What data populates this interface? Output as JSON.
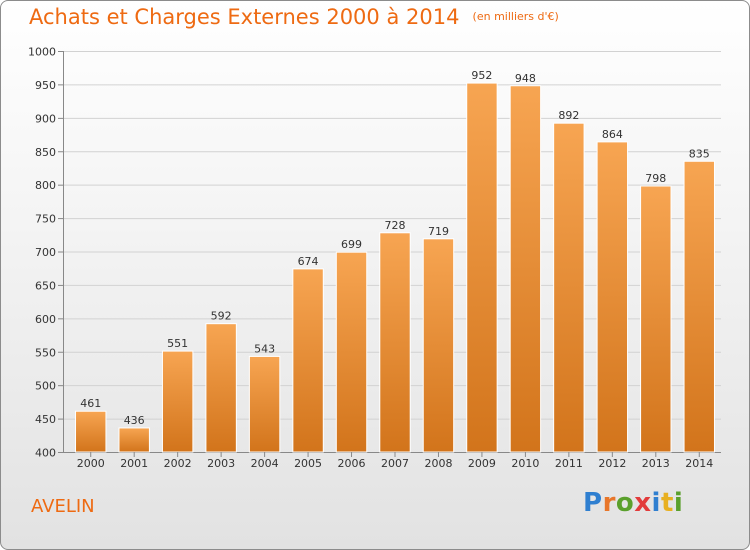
{
  "header": {
    "title": "Achats et Charges Externes 2000 à 2014",
    "unit": "(en milliers d'€)"
  },
  "footer": {
    "commune": "AVELIN",
    "logo_text": "Proxiti"
  },
  "colors": {
    "title": "#ee6a12",
    "bar_top": "#f7a552",
    "bar_bottom": "#d2741b",
    "logo": [
      "#2f7fd0",
      "#e8762a",
      "#5aa02c",
      "#e23b3b",
      "#2f7fd0",
      "#e8b021",
      "#5aa02c"
    ]
  },
  "chart_data": {
    "type": "bar",
    "categories": [
      "2000",
      "2001",
      "2002",
      "2003",
      "2004",
      "2005",
      "2006",
      "2007",
      "2008",
      "2009",
      "2010",
      "2011",
      "2012",
      "2013",
      "2014"
    ],
    "values": [
      461,
      436,
      551,
      592,
      543,
      674,
      699,
      728,
      719,
      952,
      948,
      892,
      864,
      798,
      835
    ],
    "title": "Achats et Charges Externes 2000 à 2014",
    "unit_label": "(en milliers d'€)",
    "ylim": [
      400,
      1000
    ],
    "yticks": [
      400,
      450,
      500,
      550,
      600,
      650,
      700,
      750,
      800,
      850,
      900,
      950,
      1000
    ],
    "grid": true,
    "data_labels": true
  }
}
